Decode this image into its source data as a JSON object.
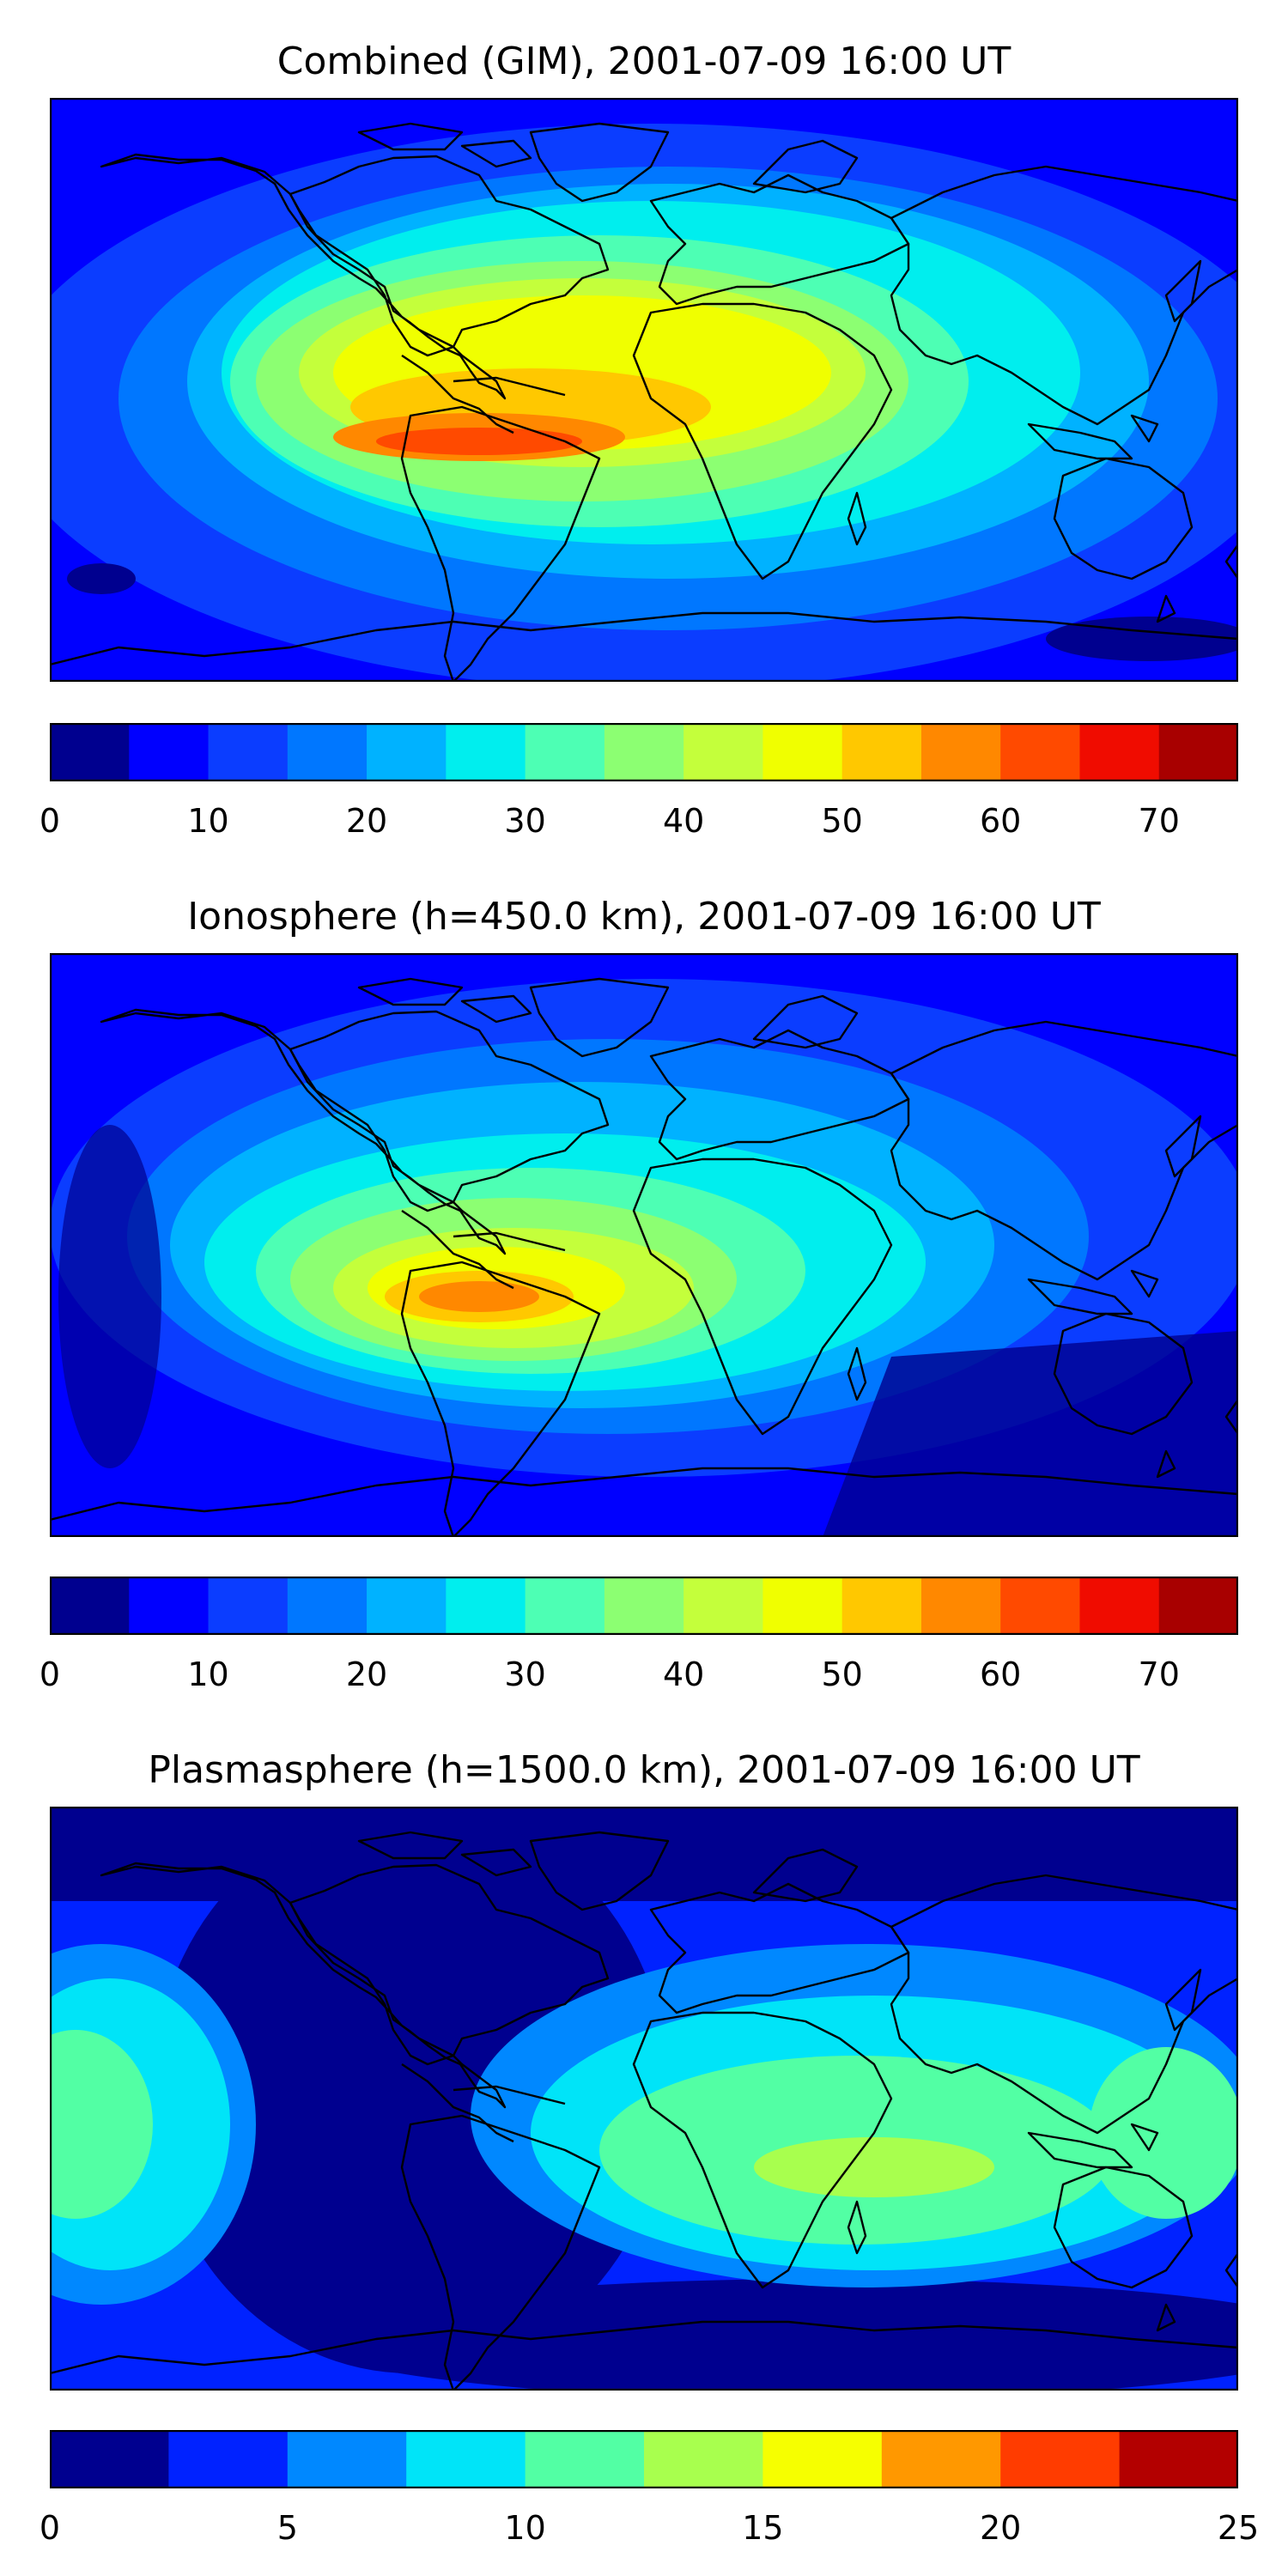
{
  "colors": {
    "scale": [
      "#00008f",
      "#0000ff",
      "#0b3dff",
      "#0077ff",
      "#00b2ff",
      "#00eeee",
      "#4dffb4",
      "#8cff72",
      "#c4ff3b",
      "#f0ff00",
      "#ffc800",
      "#ff8800",
      "#ff4a00",
      "#f00c00",
      "#a80000"
    ],
    "plasma_scale": [
      "#00008f",
      "#0022ff",
      "#0088ff",
      "#00e4f8",
      "#52ffa4",
      "#a8ff4e",
      "#f6ff00",
      "#ff9800",
      "#ff3c00",
      "#b30000"
    ],
    "coastline": "#000000"
  },
  "panels": [
    {
      "title": "Combined (GIM), 2001-07-09 16:00 UT",
      "colorbar": {
        "min": 0,
        "max": 75,
        "step": 5,
        "ticks": [
          "0",
          "10",
          "20",
          "30",
          "40",
          "50",
          "60",
          "70"
        ],
        "tick_values": [
          0,
          10,
          20,
          30,
          40,
          50,
          60,
          70
        ]
      }
    },
    {
      "title": "Ionosphere  (h=450.0 km), 2001-07-09 16:00 UT",
      "colorbar": {
        "min": 0,
        "max": 75,
        "step": 5,
        "ticks": [
          "0",
          "10",
          "20",
          "30",
          "40",
          "50",
          "60",
          "70"
        ],
        "tick_values": [
          0,
          10,
          20,
          30,
          40,
          50,
          60,
          70
        ]
      }
    },
    {
      "title": "Plasmasphere (h=1500.0 km), 2001-07-09 16:00 UT",
      "colorbar": {
        "min": 0,
        "max": 25,
        "step": 2.5,
        "ticks": [
          "0",
          "5",
          "10",
          "15",
          "20",
          "25"
        ],
        "tick_values": [
          0,
          5,
          10,
          15,
          20,
          25
        ]
      }
    }
  ]
}
